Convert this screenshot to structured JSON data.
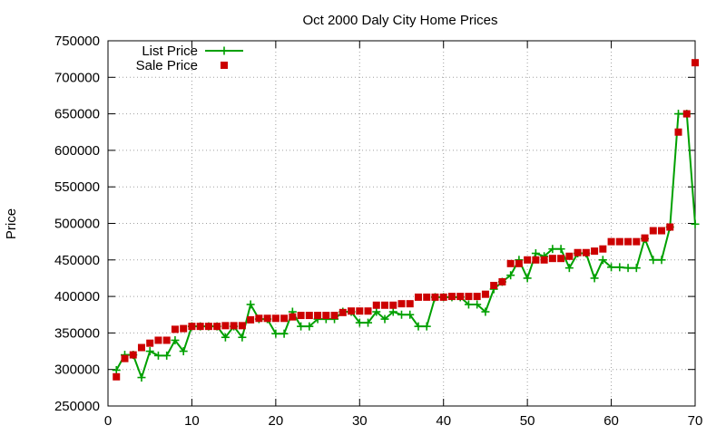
{
  "chart_data": {
    "type": "line",
    "title": "Oct 2000 Daly City Home Prices",
    "xlabel": "",
    "ylabel": "Price",
    "xlim": [
      0,
      70
    ],
    "ylim": [
      250000,
      750000
    ],
    "xticks": [
      0,
      10,
      20,
      30,
      40,
      50,
      60,
      70
    ],
    "yticks": [
      250000,
      300000,
      350000,
      400000,
      450000,
      500000,
      550000,
      600000,
      650000,
      700000,
      750000
    ],
    "grid": true,
    "legend_position": "top-left",
    "series": [
      {
        "name": "List Price",
        "style": "line-with-plus-markers",
        "color": "#00a000",
        "x": [
          1,
          2,
          3,
          4,
          5,
          6,
          7,
          8,
          9,
          10,
          11,
          12,
          13,
          14,
          15,
          16,
          17,
          18,
          19,
          20,
          21,
          22,
          23,
          24,
          25,
          26,
          27,
          28,
          29,
          30,
          31,
          32,
          33,
          34,
          35,
          36,
          37,
          38,
          39,
          40,
          41,
          42,
          43,
          44,
          45,
          46,
          47,
          48,
          49,
          50,
          51,
          52,
          53,
          54,
          55,
          56,
          57,
          58,
          59,
          60,
          61,
          62,
          63,
          64,
          65,
          66,
          67,
          68,
          69,
          70
        ],
        "values": [
          299000,
          320000,
          320000,
          289000,
          325000,
          319000,
          319000,
          340000,
          325000,
          359000,
          359000,
          359000,
          359000,
          344000,
          359000,
          344000,
          389000,
          369000,
          369000,
          349000,
          349000,
          379000,
          359000,
          359000,
          369000,
          369000,
          369000,
          379000,
          379000,
          364000,
          364000,
          379000,
          369000,
          379000,
          375000,
          375000,
          359000,
          359000,
          399000,
          399000,
          399000,
          399000,
          389000,
          389000,
          379000,
          410000,
          420000,
          429000,
          450000,
          425000,
          459000,
          455000,
          465000,
          465000,
          439000,
          459000,
          459000,
          425000,
          450000,
          440000,
          440000,
          439000,
          439000,
          479000,
          450000,
          450000,
          495000,
          650000,
          650000,
          499000
        ]
      },
      {
        "name": "Sale Price",
        "style": "square-markers",
        "color": "#cc0000",
        "x": [
          1,
          2,
          3,
          4,
          5,
          6,
          7,
          8,
          9,
          10,
          11,
          12,
          13,
          14,
          15,
          16,
          17,
          18,
          19,
          20,
          21,
          22,
          23,
          24,
          25,
          26,
          27,
          28,
          29,
          30,
          31,
          32,
          33,
          34,
          35,
          36,
          37,
          38,
          39,
          40,
          41,
          42,
          43,
          44,
          45,
          46,
          47,
          48,
          49,
          50,
          51,
          52,
          53,
          54,
          55,
          56,
          57,
          58,
          59,
          60,
          61,
          62,
          63,
          64,
          65,
          66,
          67,
          68,
          69,
          70
        ],
        "values": [
          290000,
          315000,
          320000,
          330000,
          336000,
          340000,
          340000,
          355000,
          356000,
          359000,
          359000,
          359000,
          359000,
          360000,
          360000,
          360000,
          368000,
          370000,
          370000,
          370000,
          370000,
          372000,
          374000,
          374000,
          374000,
          374000,
          374000,
          378000,
          380000,
          380000,
          380000,
          388000,
          388000,
          388000,
          390000,
          390000,
          399000,
          399000,
          399000,
          399000,
          400000,
          400000,
          400000,
          400000,
          403000,
          415000,
          420000,
          445000,
          445000,
          450000,
          450000,
          450000,
          452000,
          452000,
          455000,
          460000,
          460000,
          462000,
          465000,
          475000,
          475000,
          475000,
          475000,
          480000,
          490000,
          490000,
          495000,
          625000,
          650000,
          720000
        ]
      }
    ]
  }
}
